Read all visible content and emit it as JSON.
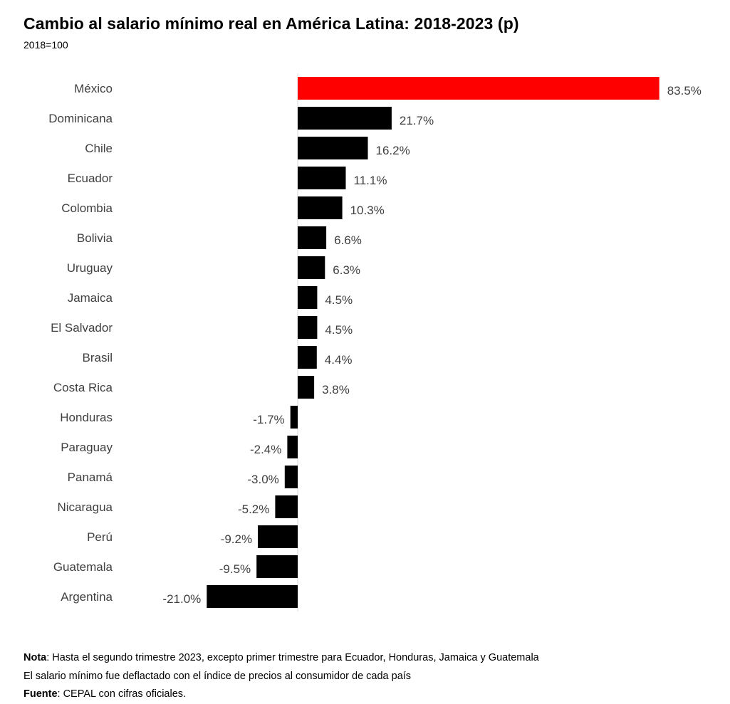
{
  "title": "Cambio al salario mínimo real en América Latina: 2018-2023 (p)",
  "subtitle": "2018=100",
  "chart_data": {
    "type": "bar",
    "orientation": "horizontal",
    "categories": [
      "México",
      "Dominicana",
      "Chile",
      "Ecuador",
      "Colombia",
      "Bolivia",
      "Uruguay",
      "Jamaica",
      "El Salvador",
      "Brasil",
      "Costa Rica",
      "Honduras",
      "Paraguay",
      "Panamá",
      "Nicaragua",
      "Perú",
      "Guatemala",
      "Argentina"
    ],
    "values": [
      83.5,
      21.7,
      16.2,
      11.1,
      10.3,
      6.6,
      6.3,
      4.5,
      4.5,
      4.4,
      3.8,
      -1.7,
      -2.4,
      -3.0,
      -5.2,
      -9.2,
      -9.5,
      -21.0
    ],
    "labels": [
      "83.5%",
      "21.7%",
      "16.2%",
      "11.1%",
      "10.3%",
      "6.6%",
      "6.3%",
      "4.5%",
      "4.5%",
      "4.4%",
      "3.8%",
      "-1.7%",
      "-2.4%",
      "-3.0%",
      "-5.2%",
      "-9.2%",
      "-9.5%",
      "-21.0%"
    ],
    "colors": [
      "#ff0000",
      "#000000",
      "#000000",
      "#000000",
      "#000000",
      "#000000",
      "#000000",
      "#000000",
      "#000000",
      "#000000",
      "#000000",
      "#000000",
      "#000000",
      "#000000",
      "#000000",
      "#000000",
      "#000000",
      "#000000"
    ],
    "xlim": [
      -21.0,
      83.5
    ],
    "grid": false
  },
  "notes": {
    "nota_label": "Nota",
    "nota_text": ": Hasta el segundo trimestre 2023, excepto primer trimestre para Ecuador, Honduras, Jamaica y Guatemala",
    "line2": "El salario mínimo fue deflactado con el índice de precios al consumidor de cada país",
    "fuente_label": "Fuente",
    "fuente_text": ": CEPAL con cifras oficiales."
  }
}
